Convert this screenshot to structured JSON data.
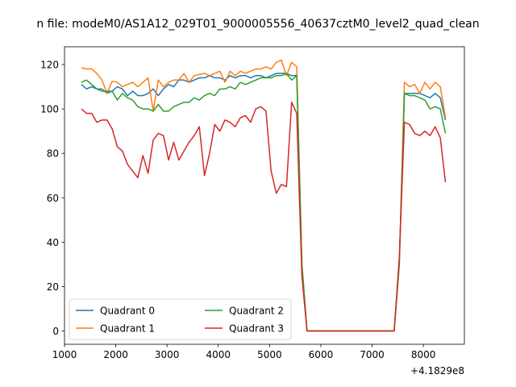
{
  "chart_data": {
    "type": "line",
    "title": "n file: modeM0/AS1A12_029T01_9000005556_40637cztM0_level2_quad_clean",
    "xlabel": "",
    "ylabel": "",
    "x_offset_label": "+4.1829e8",
    "xlim": [
      1000,
      8800
    ],
    "ylim": [
      -6,
      128
    ],
    "x_ticks": [
      1000,
      2000,
      3000,
      4000,
      5000,
      6000,
      7000,
      8000
    ],
    "y_ticks": [
      0,
      20,
      40,
      60,
      80,
      100,
      120
    ],
    "grid": false,
    "legend": {
      "placement": "lower-left",
      "columns": 2
    },
    "x": [
      1330,
      1430,
      1530,
      1630,
      1730,
      1830,
      1930,
      2030,
      2130,
      2230,
      2330,
      2430,
      2530,
      2630,
      2730,
      2830,
      2930,
      3030,
      3130,
      3230,
      3330,
      3430,
      3530,
      3630,
      3730,
      3830,
      3930,
      4030,
      4130,
      4230,
      4330,
      4430,
      4530,
      4630,
      4730,
      4830,
      4930,
      5030,
      5130,
      5230,
      5330,
      5430,
      5530,
      5630,
      5730,
      5830,
      5930,
      6030,
      6130,
      6230,
      6330,
      6430,
      6530,
      6630,
      6730,
      6830,
      6930,
      7030,
      7130,
      7230,
      7330,
      7430,
      7530,
      7630,
      7730,
      7830,
      7930,
      8030,
      8130,
      8230,
      8330,
      8430
    ],
    "series": [
      {
        "name": "Quadrant 0",
        "color": "#1f77b4",
        "values": [
          111,
          109,
          110,
          109,
          109,
          107,
          108,
          110,
          109,
          106,
          108,
          106,
          106,
          107,
          109,
          106,
          109,
          111,
          110,
          113,
          113,
          112,
          113,
          114,
          114,
          115,
          114,
          114,
          113,
          115,
          114,
          115,
          115,
          114,
          115,
          115,
          114,
          115,
          116,
          116,
          116,
          115,
          115,
          30,
          0,
          0,
          0,
          0,
          0,
          0,
          0,
          0,
          0,
          0,
          0,
          0,
          0,
          0,
          0,
          0,
          0,
          0,
          30,
          107,
          107,
          107,
          107,
          106,
          105,
          107,
          105,
          95
        ]
      },
      {
        "name": "Quadrant 1",
        "color": "#ff7f0e",
        "values": [
          118.5,
          118,
          118,
          116,
          113,
          107,
          112.5,
          112,
          110,
          111,
          112,
          110,
          112,
          114,
          99,
          113,
          110,
          112,
          113,
          113,
          116,
          112,
          115,
          115.5,
          116,
          115,
          116,
          117,
          112,
          117,
          115,
          117,
          116,
          117,
          118,
          118,
          119,
          118,
          121,
          122,
          115,
          121,
          119,
          30,
          0,
          0,
          0,
          0,
          0,
          0,
          0,
          0,
          0,
          0,
          0,
          0,
          0,
          0,
          0,
          0,
          0,
          0,
          30,
          112,
          110,
          111,
          107,
          112,
          109,
          112,
          110,
          96
        ]
      },
      {
        "name": "Quadrant 2",
        "color": "#2ca02c",
        "values": [
          112,
          113,
          111,
          109,
          108,
          108,
          108,
          104,
          107,
          105,
          104,
          101,
          100,
          100,
          99,
          102,
          99,
          99,
          101,
          102,
          103,
          103,
          105,
          104,
          106,
          107,
          106,
          109,
          109,
          110,
          109,
          112,
          111,
          112,
          113,
          114,
          114,
          114,
          115,
          115,
          116,
          113,
          115,
          30,
          0,
          0,
          0,
          0,
          0,
          0,
          0,
          0,
          0,
          0,
          0,
          0,
          0,
          0,
          0,
          0,
          0,
          0,
          30,
          107,
          106,
          106,
          105,
          104,
          100,
          101,
          100,
          89
        ]
      },
      {
        "name": "Quadrant 3",
        "color": "#d62728",
        "values": [
          100,
          98,
          98,
          94,
          95,
          95,
          91,
          83,
          81,
          75,
          72,
          69,
          79,
          71,
          86,
          89,
          88,
          77,
          85,
          77,
          81,
          85,
          88,
          92,
          70,
          80,
          93,
          90,
          95,
          94,
          92,
          96,
          97,
          94,
          100,
          101,
          99,
          72,
          62,
          66,
          65,
          103,
          98,
          25,
          0,
          0,
          0,
          0,
          0,
          0,
          0,
          0,
          0,
          0,
          0,
          0,
          0,
          0,
          0,
          0,
          0,
          0,
          33,
          94,
          93,
          89,
          88,
          90,
          88,
          92,
          87,
          67
        ]
      }
    ]
  }
}
